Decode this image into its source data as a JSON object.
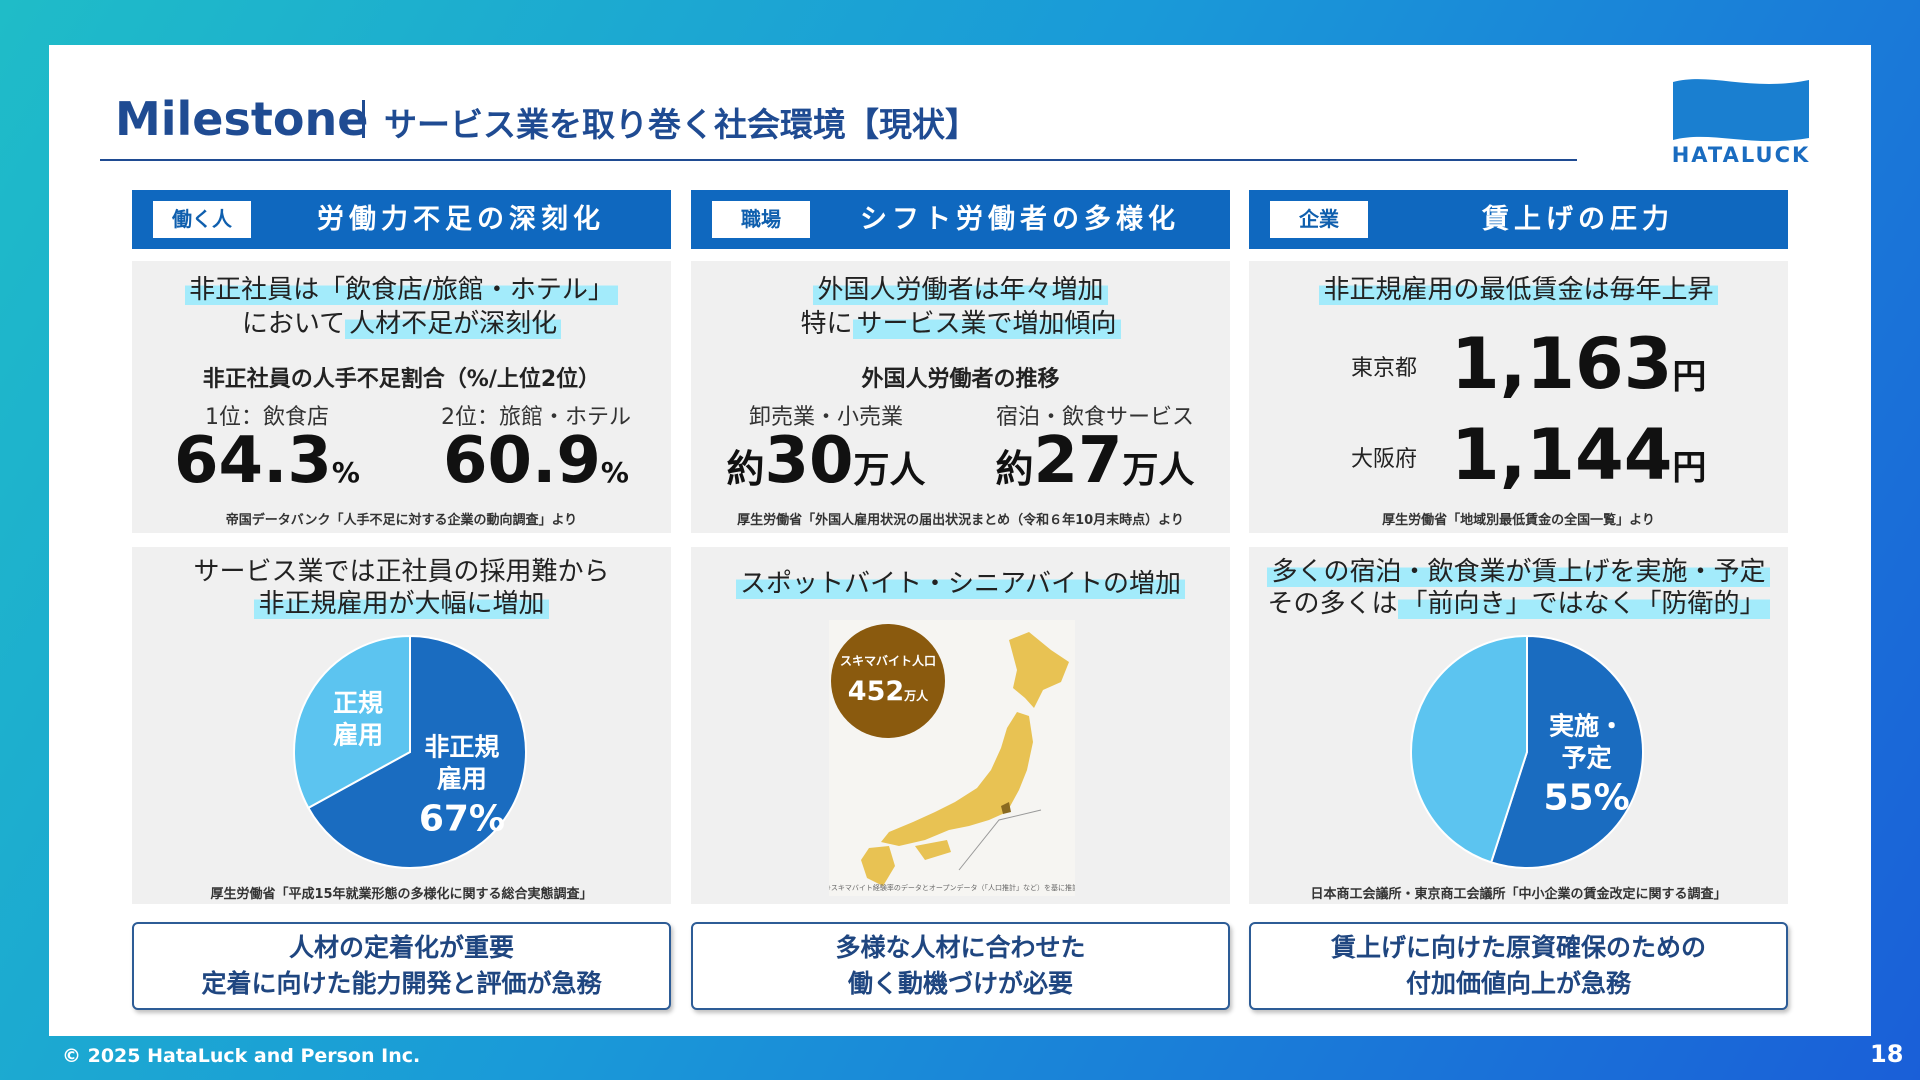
{
  "header": {
    "title": "Milestone",
    "subtitle": "サービス業を取り巻く社会環境【現状】"
  },
  "logo": "HATALUCK",
  "columns": [
    {
      "tag": "働く人",
      "heading": "労働力不足の深刻化",
      "top": {
        "lead": [
          [
            {
              "text": "非正社員は「飲食店/旅館・ホテル」",
              "highlight": true
            }
          ],
          [
            {
              "text": "において",
              "highlight": false
            },
            {
              "text": "人材不足が深刻化",
              "highlight": true
            }
          ]
        ],
        "subtitle": "非正社員の人手不足割合（%/上位2位）",
        "stats": [
          {
            "label": "1位：飲食店",
            "value": "64.3",
            "unit": "%"
          },
          {
            "label": "2位：旅館・ホテル",
            "value": "60.9",
            "unit": "%"
          }
        ],
        "source": "帝国データバンク「人手不足に対する企業の動向調査」より"
      },
      "bottom": {
        "lead": [
          [
            {
              "text": "サービス業では正社員の採用難から",
              "highlight": false
            }
          ],
          [
            {
              "text": "非正規雇用が大幅に増加",
              "highlight": true
            }
          ]
        ],
        "pie": {
          "slices": [
            {
              "label": [
                "非正規",
                "雇用"
              ],
              "value": 67,
              "value_label": "67%",
              "color": "#1a6cc0"
            },
            {
              "label": [
                "正規",
                "雇用"
              ],
              "value": 33,
              "color": "#5cc4f0"
            }
          ]
        },
        "source": "厚生労働省「平成15年就業形態の多様化に関する総合実態調査」"
      },
      "conclusion": [
        "人材の定着化が重要",
        "定着に向けた能力開発と評価が急務"
      ]
    },
    {
      "tag": "職場",
      "heading": "シフト労働者の多様化",
      "top": {
        "lead": [
          [
            {
              "text": "外国人労働者は年々増加",
              "highlight": true
            }
          ],
          [
            {
              "text": "特に",
              "highlight": false
            },
            {
              "text": "サービス業で増加傾向",
              "highlight": true
            }
          ]
        ],
        "subtitle": "外国人労働者の推移",
        "stats": [
          {
            "label": "卸売業・小売業",
            "prefix": "約",
            "value": "30",
            "unit": "万人"
          },
          {
            "label": "宿泊・飲食サービス",
            "prefix": "約",
            "value": "27",
            "unit": "万人"
          }
        ],
        "source": "厚生労働省「外国人雇用状況の届出状況まとめ（令和６年10月末時点）より"
      },
      "bottom": {
        "lead": [
          [
            {
              "text": "スポットバイト・シニアバイトの増加",
              "highlight": true
            }
          ]
        ],
        "map": {
          "bubble_title": "スキマバイト人口",
          "bubble_value": "452",
          "bubble_unit": "万人",
          "note": "※スキマバイト経験率のデータとオープンデータ（「人口推計」など）を基に推計"
        }
      },
      "conclusion": [
        "多様な人材に合わせた",
        "働く動機づけが必要"
      ]
    },
    {
      "tag": "企業",
      "heading": "賃上げの圧力",
      "top": {
        "lead": [
          [
            {
              "text": "非正規雇用の最低賃金は毎年上昇",
              "highlight": true
            }
          ]
        ],
        "stats": [
          {
            "label": "東京都",
            "value": "1,163",
            "unit": "円"
          },
          {
            "label": "大阪府",
            "value": "1,144",
            "unit": "円"
          }
        ],
        "source": "厚生労働省「地域別最低賃金の全国一覧」より"
      },
      "bottom": {
        "lead": [
          [
            {
              "text": "多くの宿泊・飲食業が賃上げを実施・予定",
              "highlight": true
            }
          ],
          [
            {
              "text": "その多くは",
              "highlight": false
            },
            {
              "text": "「前向き」ではなく「防衛的」",
              "highlight": true
            }
          ]
        ],
        "pie": {
          "slices": [
            {
              "label": [
                "実施・",
                "予定"
              ],
              "value": 55,
              "value_label": "55%",
              "color": "#1a6cc0"
            },
            {
              "label": null,
              "value": 45,
              "color": "#5cc4f0"
            }
          ]
        },
        "source": "日本商工会議所・東京商工会議所「中小企業の賃金改定に関する調査」"
      },
      "conclusion": [
        "賃上げに向けた原資確保のための",
        "付加価値向上が急務"
      ]
    }
  ],
  "footer": {
    "copyright": "© 2025 HataLuck and Person Inc.",
    "page": "18"
  }
}
